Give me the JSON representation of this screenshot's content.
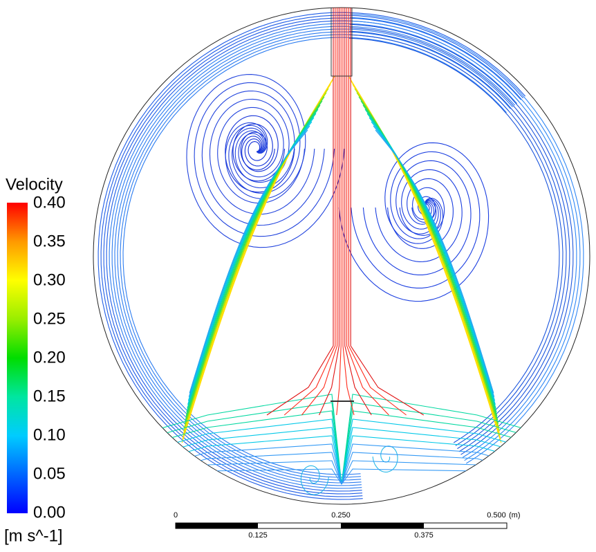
{
  "legend": {
    "title": "Velocity",
    "ticks": [
      "0.40",
      "0.35",
      "0.30",
      "0.25",
      "0.20",
      "0.15",
      "0.10",
      "0.05",
      "0.00"
    ],
    "unit": "[m s^-1]"
  },
  "scale_bar": {
    "top_labels": [
      "0",
      "0.250",
      "0.500"
    ],
    "unit": "(m)",
    "bottom_labels": [
      "0.125",
      "0.375"
    ]
  }
}
